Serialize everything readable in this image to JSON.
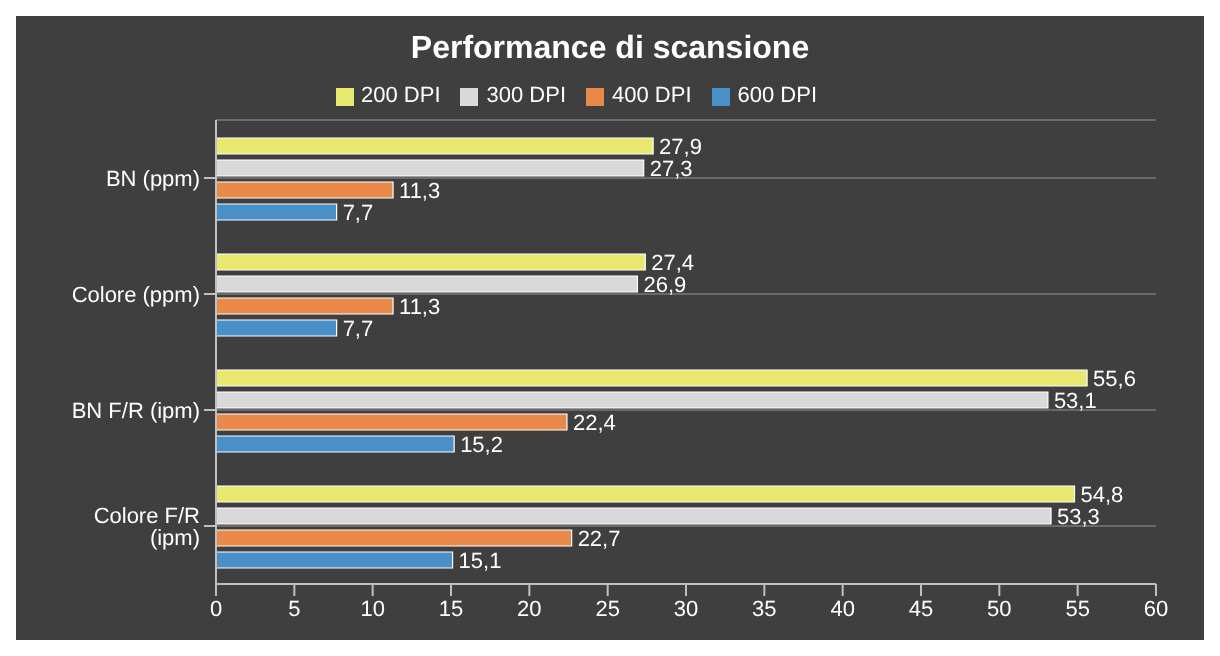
{
  "chart_data": {
    "type": "bar",
    "orientation": "horizontal",
    "title": "Performance di scansione",
    "categories": [
      "BN (ppm)",
      "Colore (ppm)",
      "BN F/R (ipm)",
      "Colore F/R (ipm)"
    ],
    "series": [
      {
        "name": "200 DPI",
        "color": "#e8e870",
        "values": [
          27.9,
          27.4,
          55.6,
          54.8
        ],
        "value_labels": [
          "27,9",
          "27,4",
          "55,6",
          "54,8"
        ]
      },
      {
        "name": "300 DPI",
        "color": "#d9d9d9",
        "values": [
          27.3,
          26.9,
          53.1,
          53.3
        ],
        "value_labels": [
          "27,3",
          "26,9",
          "53,1",
          "53,3"
        ]
      },
      {
        "name": "400 DPI",
        "color": "#e8894a",
        "values": [
          11.3,
          11.3,
          22.4,
          22.7
        ],
        "value_labels": [
          "11,3",
          "11,3",
          "22,4",
          "22,7"
        ]
      },
      {
        "name": "600 DPI",
        "color": "#4a90c8",
        "values": [
          7.7,
          7.7,
          15.2,
          15.1
        ],
        "value_labels": [
          "7,7",
          "7,7",
          "15,2",
          "15,1"
        ]
      }
    ],
    "xlim": [
      0,
      60
    ],
    "xticks": [
      0,
      5,
      10,
      15,
      20,
      25,
      30,
      35,
      40,
      45,
      50,
      55,
      60
    ],
    "grid": "y",
    "legend": "top"
  }
}
